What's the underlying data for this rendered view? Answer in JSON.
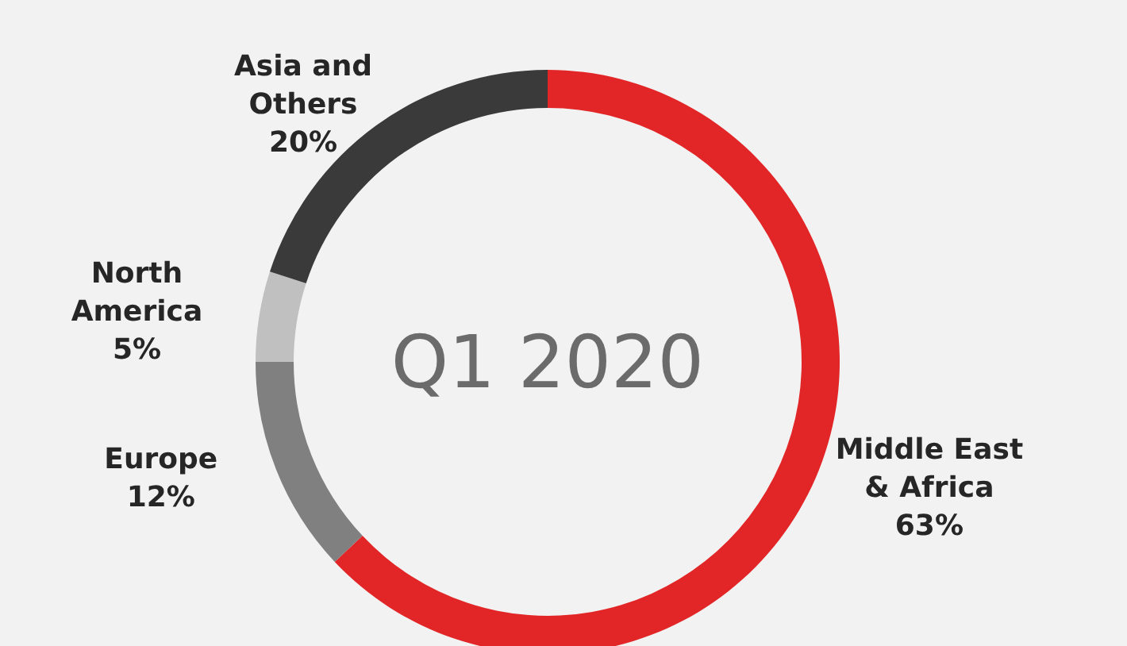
{
  "chart_data": {
    "type": "donut",
    "title": "Q1 2020",
    "categories": [
      "Middle East & Africa",
      "Europe",
      "North America",
      "Asia and Others"
    ],
    "values": [
      63,
      12,
      5,
      20
    ],
    "value_labels": [
      "63%",
      "12%",
      "5%",
      "20%"
    ],
    "colors": [
      "#e22526",
      "#808080",
      "#c0c0c0",
      "#3a3a3a"
    ]
  }
}
